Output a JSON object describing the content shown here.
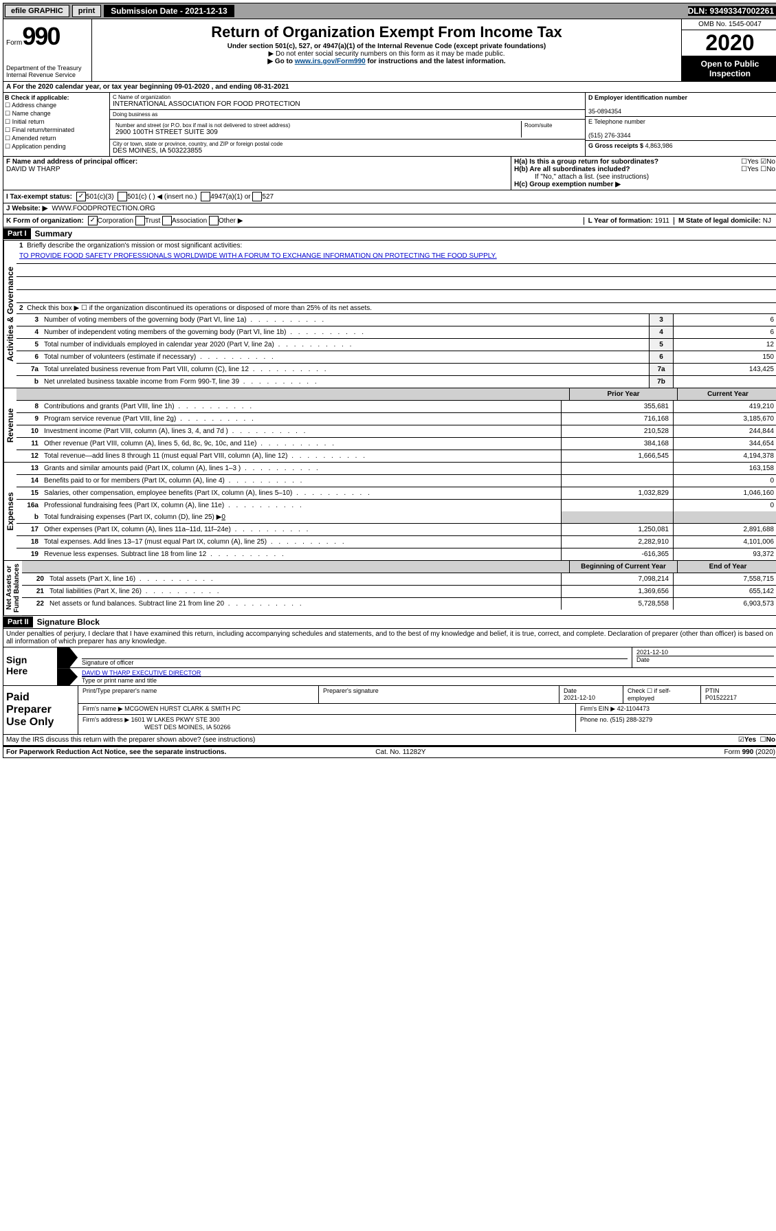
{
  "topbar": {
    "efile": "efile GRAPHIC",
    "print": "print",
    "submission": "Submission Date - 2021-12-13",
    "dln": "DLN: 93493347002261"
  },
  "header": {
    "form_prefix": "Form",
    "form_no": "990",
    "dept": "Department of the Treasury\nInternal Revenue Service",
    "title": "Return of Organization Exempt From Income Tax",
    "subtitle": "Under section 501(c), 527, or 4947(a)(1) of the Internal Revenue Code (except private foundations)",
    "note1": "▶ Do not enter social security numbers on this form as it may be made public.",
    "note2_pre": "▶ Go to ",
    "note2_link": "www.irs.gov/Form990",
    "note2_post": " for instructions and the latest information.",
    "omb": "OMB No. 1545-0047",
    "year": "2020",
    "open": "Open to Public\nInspection"
  },
  "rowA": "A For the 2020 calendar year, or tax year beginning 09-01-2020   , and ending 08-31-2021",
  "colB": {
    "title": "B Check if applicable:",
    "opts": [
      "Address change",
      "Name change",
      "Initial return",
      "Final return/terminated",
      "Amended return",
      "Application pending"
    ]
  },
  "colC": {
    "name_lbl": "C Name of organization",
    "name": "INTERNATIONAL ASSOCIATION FOR FOOD PROTECTION",
    "dba_lbl": "Doing business as",
    "dba": "",
    "addr_lbl": "Number and street (or P.O. box if mail is not delivered to street address)",
    "addr": "2900 100TH STREET SUITE 309",
    "room_lbl": "Room/suite",
    "city_lbl": "City or town, state or province, country, and ZIP or foreign postal code",
    "city": "DES MOINES, IA  503223855"
  },
  "colD": {
    "ein_lbl": "D Employer identification number",
    "ein": "35-0894354",
    "phone_lbl": "E Telephone number",
    "phone": "(515) 276-3344",
    "gross_lbl": "G Gross receipts $",
    "gross": "4,863,986"
  },
  "rowF": {
    "lbl": "F Name and address of principal officer:",
    "name": "DAVID W THARP"
  },
  "rowH": {
    "ha": "H(a)  Is this a group return for subordinates?",
    "hb": "H(b)  Are all subordinates included?",
    "hb_note": "If \"No,\" attach a list. (see instructions)",
    "hc": "H(c)  Group exemption number ▶",
    "yes": "Yes",
    "no": "No"
  },
  "rowI": {
    "lbl": "I    Tax-exempt status:",
    "o1": "501(c)(3)",
    "o2": "501(c) (  ) ◀ (insert no.)",
    "o3": "4947(a)(1) or",
    "o4": "527"
  },
  "rowJ": {
    "lbl": "J    Website: ▶",
    "val": "WWW.FOODPROTECTION.ORG"
  },
  "rowK": {
    "lbl": "K Form of organization:",
    "o1": "Corporation",
    "o2": "Trust",
    "o3": "Association",
    "o4": "Other ▶",
    "l_lbl": "L Year of formation:",
    "l_val": "1911",
    "m_lbl": "M State of legal domicile:",
    "m_val": "NJ"
  },
  "partI": {
    "hdr": "Part I",
    "title": "Summary"
  },
  "governance": {
    "label": "Activities & Governance",
    "l1_lbl": "Briefly describe the organization's mission or most significant activities:",
    "l1_val": "TO PROVIDE FOOD SAFETY PROFESSIONALS WORLDWIDE WITH A FORUM TO EXCHANGE INFORMATION ON PROTECTING THE FOOD SUPPLY.",
    "l2": "Check this box ▶ ☐  if the organization discontinued its operations or disposed of more than 25% of its net assets.",
    "lines": [
      {
        "n": "3",
        "d": "Number of voting members of the governing body (Part VI, line 1a)",
        "box": "3",
        "v": "6"
      },
      {
        "n": "4",
        "d": "Number of independent voting members of the governing body (Part VI, line 1b)",
        "box": "4",
        "v": "6"
      },
      {
        "n": "5",
        "d": "Total number of individuals employed in calendar year 2020 (Part V, line 2a)",
        "box": "5",
        "v": "12"
      },
      {
        "n": "6",
        "d": "Total number of volunteers (estimate if necessary)",
        "box": "6",
        "v": "150"
      },
      {
        "n": "7a",
        "d": "Total unrelated business revenue from Part VIII, column (C), line 12",
        "box": "7a",
        "v": "143,425"
      },
      {
        "n": "b",
        "d": "Net unrelated business taxable income from Form 990-T, line 39",
        "box": "7b",
        "v": ""
      }
    ]
  },
  "twocol_hdr": {
    "prior": "Prior Year",
    "current": "Current Year"
  },
  "revenue": {
    "label": "Revenue",
    "lines": [
      {
        "n": "8",
        "d": "Contributions and grants (Part VIII, line 1h)",
        "p": "355,681",
        "c": "419,210"
      },
      {
        "n": "9",
        "d": "Program service revenue (Part VIII, line 2g)",
        "p": "716,168",
        "c": "3,185,670"
      },
      {
        "n": "10",
        "d": "Investment income (Part VIII, column (A), lines 3, 4, and 7d )",
        "p": "210,528",
        "c": "244,844"
      },
      {
        "n": "11",
        "d": "Other revenue (Part VIII, column (A), lines 5, 6d, 8c, 9c, 10c, and 11e)",
        "p": "384,168",
        "c": "344,654"
      },
      {
        "n": "12",
        "d": "Total revenue—add lines 8 through 11 (must equal Part VIII, column (A), line 12)",
        "p": "1,666,545",
        "c": "4,194,378"
      }
    ]
  },
  "expenses": {
    "label": "Expenses",
    "lines": [
      {
        "n": "13",
        "d": "Grants and similar amounts paid (Part IX, column (A), lines 1–3 )",
        "p": "",
        "c": "163,158"
      },
      {
        "n": "14",
        "d": "Benefits paid to or for members (Part IX, column (A), line 4)",
        "p": "",
        "c": "0"
      },
      {
        "n": "15",
        "d": "Salaries, other compensation, employee benefits (Part IX, column (A), lines 5–10)",
        "p": "1,032,829",
        "c": "1,046,160"
      },
      {
        "n": "16a",
        "d": "Professional fundraising fees (Part IX, column (A), line 11e)",
        "p": "",
        "c": "0"
      }
    ],
    "l16b_n": "b",
    "l16b": "Total fundraising expenses (Part IX, column (D), line 25) ▶",
    "l16b_v": "0",
    "lines2": [
      {
        "n": "17",
        "d": "Other expenses (Part IX, column (A), lines 11a–11d, 11f–24e)",
        "p": "1,250,081",
        "c": "2,891,688"
      },
      {
        "n": "18",
        "d": "Total expenses. Add lines 13–17 (must equal Part IX, column (A), line 25)",
        "p": "2,282,910",
        "c": "4,101,006"
      },
      {
        "n": "19",
        "d": "Revenue less expenses. Subtract line 18 from line 12",
        "p": "-616,365",
        "c": "93,372"
      }
    ]
  },
  "netassets": {
    "label": "Net Assets or\nFund Balances",
    "hdr": {
      "b": "Beginning of Current Year",
      "e": "End of Year"
    },
    "lines": [
      {
        "n": "20",
        "d": "Total assets (Part X, line 16)",
        "p": "7,098,214",
        "c": "7,558,715"
      },
      {
        "n": "21",
        "d": "Total liabilities (Part X, line 26)",
        "p": "1,369,656",
        "c": "655,142"
      },
      {
        "n": "22",
        "d": "Net assets or fund balances. Subtract line 21 from line 20",
        "p": "5,728,558",
        "c": "6,903,573"
      }
    ]
  },
  "partII": {
    "hdr": "Part II",
    "title": "Signature Block",
    "perjury": "Under penalties of perjury, I declare that I have examined this return, including accompanying schedules and statements, and to the best of my knowledge and belief, it is true, correct, and complete. Declaration of preparer (other than officer) is based on all information of which preparer has any knowledge."
  },
  "sign": {
    "lbl": "Sign\nHere",
    "sig_lbl": "Signature of officer",
    "date": "2021-12-10",
    "date_lbl": "Date",
    "name": "DAVID W THARP  EXECUTIVE DIRECTOR",
    "name_lbl": "Type or print name and title"
  },
  "prep": {
    "lbl": "Paid\nPreparer\nUse Only",
    "c1": "Print/Type preparer's name",
    "c2": "Preparer's signature",
    "c3_lbl": "Date",
    "c3": "2021-12-10",
    "c4": "Check ☐ if self-employed",
    "c5_lbl": "PTIN",
    "c5": "P01522217",
    "firm_name_lbl": "Firm's name      ▶",
    "firm_name": "MCGOWEN HURST CLARK & SMITH PC",
    "firm_ein_lbl": "Firm's EIN ▶",
    "firm_ein": "42-1104473",
    "firm_addr_lbl": "Firm's address ▶",
    "firm_addr": "1601 W LAKES PKWY STE 300",
    "firm_city": "WEST DES MOINES, IA  50266",
    "phone_lbl": "Phone no.",
    "phone": "(515) 288-3279"
  },
  "discuss": {
    "q": "May the IRS discuss this return with the preparer shown above? (see instructions)",
    "yes": "Yes",
    "no": "No"
  },
  "footer": {
    "l": "For Paperwork Reduction Act Notice, see the separate instructions.",
    "c": "Cat. No. 11282Y",
    "r": "Form 990 (2020)"
  }
}
